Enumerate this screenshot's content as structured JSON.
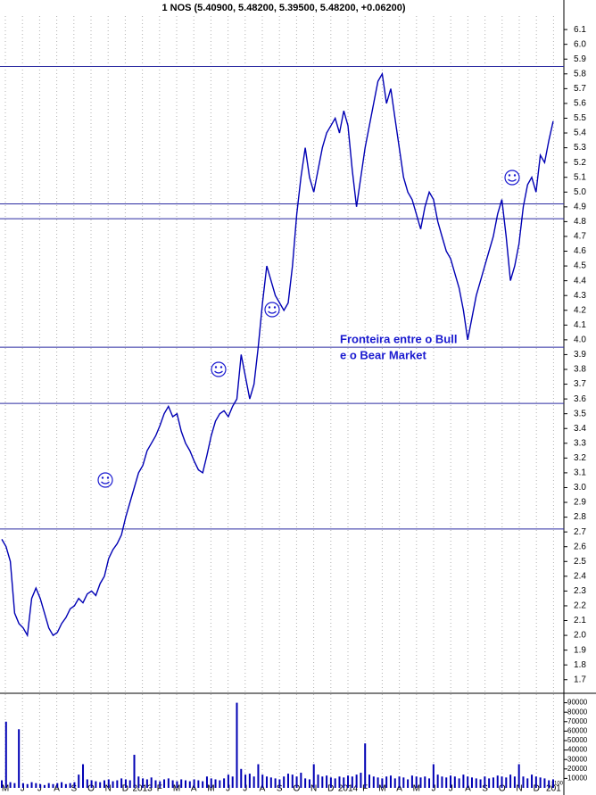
{
  "chart_data": [
    {
      "type": "line",
      "title": "1 NOS (5.40900, 5.48200, 5.39500, 5.48200, +0.06200)",
      "annotations": [
        "Fronteira entre o Bull",
        "e o Bear Market"
      ],
      "ylim": [
        1.62,
        6.3
      ],
      "yticks": [
        1.7,
        1.8,
        1.9,
        {
          "value": 2,
          "label": "2.0"
        },
        2.1,
        2.2,
        2.3,
        2.4,
        2.5,
        2.6,
        2.7,
        2.8,
        2.9,
        {
          "value": 3,
          "label": "3.0"
        },
        3.1,
        3.2,
        3.3,
        3.4,
        3.5,
        3.6,
        3.7,
        3.8,
        3.9,
        {
          "value": 4,
          "label": "4.0"
        },
        4.1,
        4.2,
        4.3,
        4.4,
        4.5,
        4.6,
        4.7,
        4.8,
        4.9,
        {
          "value": 5,
          "label": "5.0"
        },
        5.1,
        5.2,
        5.3,
        5.4,
        5.5,
        5.6,
        5.7,
        5.8,
        5.9,
        {
          "value": 6,
          "label": "6.0"
        },
        6.1
      ],
      "reference_lines": [
        5.85,
        4.92,
        4.82,
        3.95,
        3.57,
        2.72
      ],
      "reference_color": "#2a2aa0",
      "grid": true,
      "series": [
        {
          "color": "#0000b4",
          "values": [
            2.65,
            2.6,
            2.5,
            2.15,
            2.08,
            2.05,
            2.0,
            2.25,
            2.32,
            2.25,
            2.15,
            2.05,
            2.0,
            2.02,
            2.08,
            2.12,
            2.18,
            2.2,
            2.25,
            2.22,
            2.28,
            2.3,
            2.27,
            2.35,
            2.4,
            2.52,
            2.58,
            2.62,
            2.68,
            2.8,
            2.9,
            3.0,
            3.1,
            3.15,
            3.25,
            3.3,
            3.35,
            3.42,
            3.5,
            3.55,
            3.48,
            3.5,
            3.38,
            3.3,
            3.25,
            3.18,
            3.12,
            3.1,
            3.22,
            3.35,
            3.45,
            3.5,
            3.52,
            3.48,
            3.55,
            3.6,
            3.9,
            3.75,
            3.6,
            3.7,
            3.95,
            4.25,
            4.5,
            4.4,
            4.3,
            4.25,
            4.2,
            4.25,
            4.5,
            4.85,
            5.1,
            5.3,
            5.1,
            5.0,
            5.15,
            5.3,
            5.4,
            5.45,
            5.5,
            5.4,
            5.55,
            5.45,
            5.15,
            4.9,
            5.1,
            5.3,
            5.45,
            5.6,
            5.75,
            5.8,
            5.6,
            5.7,
            5.5,
            5.3,
            5.1,
            5.0,
            4.95,
            4.85,
            4.75,
            4.9,
            5.0,
            4.95,
            4.8,
            4.7,
            4.6,
            4.55,
            4.45,
            4.35,
            4.2,
            4.0,
            4.15,
            4.3,
            4.4,
            4.5,
            4.6,
            4.7,
            4.85,
            4.95,
            4.7,
            4.4,
            4.5,
            4.65,
            4.9,
            5.05,
            5.1,
            5.0,
            5.25,
            5.2,
            5.35,
            5.48
          ]
        }
      ]
    },
    {
      "type": "bar",
      "x_labels": [
        "M",
        "J",
        "J",
        "A",
        "S",
        "O",
        "N",
        "D",
        "2013",
        "F",
        "M",
        "A",
        "M",
        "J",
        "J",
        "A",
        "S",
        "O",
        "N",
        "D",
        "2014",
        "F",
        "M",
        "A",
        "M",
        "J",
        "J",
        "A",
        "S",
        "O",
        "N",
        "D",
        "201"
      ],
      "unit_label": "x100",
      "ylim": [
        0,
        100000
      ],
      "yticks": [
        10000,
        20000,
        30000,
        40000,
        50000,
        60000,
        70000,
        80000,
        90000
      ],
      "color": "#0000b4",
      "values": [
        8000,
        70000,
        6000,
        5000,
        62000,
        5000,
        4000,
        6000,
        5000,
        4000,
        3000,
        5000,
        4000,
        5000,
        6000,
        4000,
        5000,
        6000,
        14000,
        25000,
        9000,
        8000,
        7000,
        6000,
        8000,
        9000,
        7000,
        8000,
        10000,
        9000,
        8000,
        35000,
        12000,
        10000,
        9000,
        11000,
        8000,
        7000,
        9000,
        10000,
        8000,
        7000,
        9000,
        8000,
        7000,
        9000,
        8000,
        7000,
        12000,
        10000,
        9000,
        8000,
        10000,
        14000,
        12000,
        90000,
        20000,
        14000,
        15000,
        12000,
        25000,
        14000,
        12000,
        11000,
        10000,
        9000,
        12000,
        15000,
        14000,
        12000,
        16000,
        10000,
        9000,
        25000,
        14000,
        12000,
        13000,
        11000,
        10000,
        12000,
        11000,
        13000,
        12000,
        14000,
        16000,
        47000,
        14000,
        12000,
        11000,
        10000,
        12000,
        13000,
        10000,
        12000,
        11000,
        9000,
        13000,
        12000,
        11000,
        12000,
        10000,
        25000,
        14000,
        12000,
        11000,
        13000,
        12000,
        10000,
        14000,
        12000,
        11000,
        10000,
        9000,
        12000,
        10000,
        11000,
        13000,
        12000,
        11000,
        14000,
        12000,
        25000,
        12000,
        10000,
        14000,
        12000,
        11000,
        10000,
        8000,
        9000
      ]
    }
  ]
}
